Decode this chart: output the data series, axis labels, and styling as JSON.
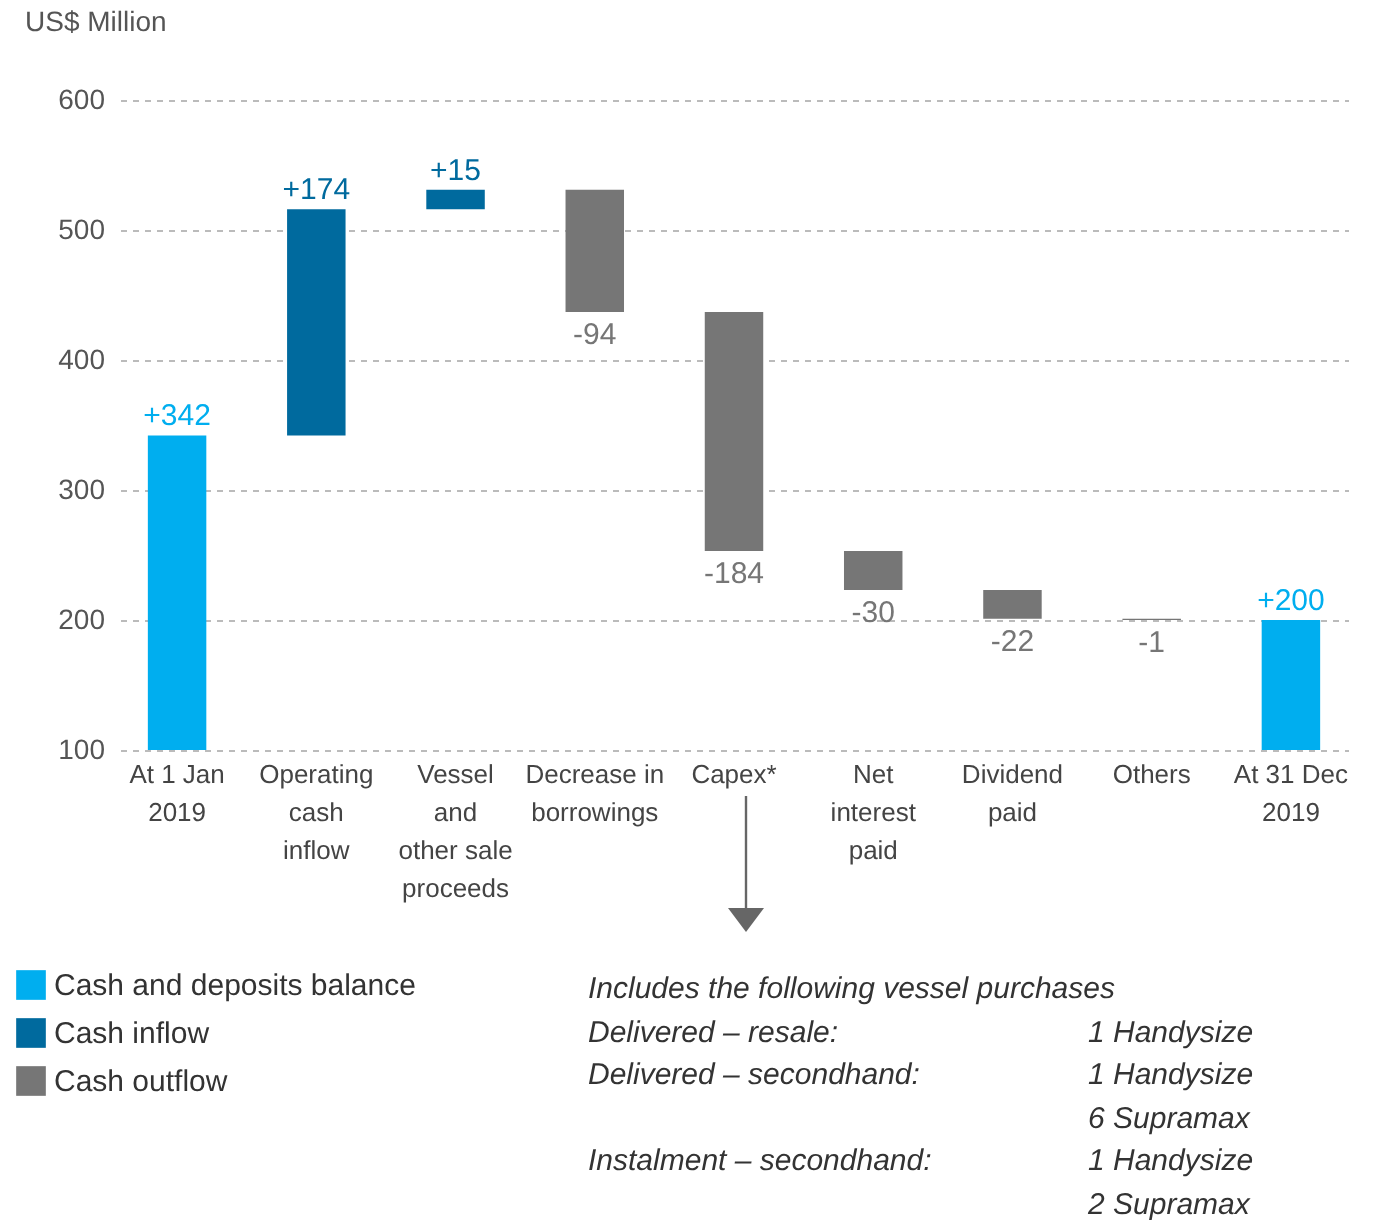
{
  "chart_data": {
    "type": "bar",
    "ylabel": "US$ Million",
    "categories": [
      "At 1 Jan\n2019",
      "Operating\ncash\ninflow",
      "Vessel\nand\nother sale\nproceeds",
      "Decrease in\nborrowings",
      "Capex*",
      "Net\ninterest\npaid",
      "Dividend\npaid",
      "Others",
      "At 31 Dec\n2019"
    ],
    "series": [
      {
        "name": "Cash and deposits balance",
        "color": "#00aeef",
        "values": [
          342,
          null,
          null,
          null,
          null,
          null,
          null,
          null,
          200
        ],
        "base": [
          0,
          null,
          null,
          null,
          null,
          null,
          null,
          null,
          0
        ],
        "value_labels": [
          "+342",
          null,
          null,
          null,
          null,
          null,
          null,
          null,
          "+200"
        ]
      },
      {
        "name": "Cash inflow",
        "color": "#006a9e",
        "values": [
          null,
          174,
          15,
          null,
          null,
          null,
          null,
          null,
          null
        ],
        "base": [
          null,
          342,
          516,
          null,
          null,
          null,
          null,
          null,
          null
        ],
        "value_labels": [
          null,
          "+174",
          "+15",
          null,
          null,
          null,
          null,
          null,
          null
        ]
      },
      {
        "name": "Cash outflow",
        "color": "#767676",
        "values": [
          null,
          null,
          null,
          -94,
          -184,
          -30,
          -22,
          -1,
          null
        ],
        "base": [
          null,
          null,
          null,
          531,
          437,
          253,
          223,
          201,
          null
        ],
        "value_labels": [
          null,
          null,
          null,
          "-94",
          "-184",
          "-30",
          "-22",
          "-1",
          null
        ]
      }
    ],
    "ylim": [
      100,
      600
    ],
    "yticks": [
      100,
      200,
      300,
      400,
      500,
      600
    ],
    "grid": "y",
    "legend": "bottom left",
    "annotations": [
      "Includes the following vessel purchases",
      "Delivered – resale:",
      "1 Handysize",
      "Delivered – secondhand:",
      "1 Handysize",
      "6 Supramax",
      "Instalment – secondhand:",
      "1 Handysize",
      "2 Supramax"
    ]
  }
}
